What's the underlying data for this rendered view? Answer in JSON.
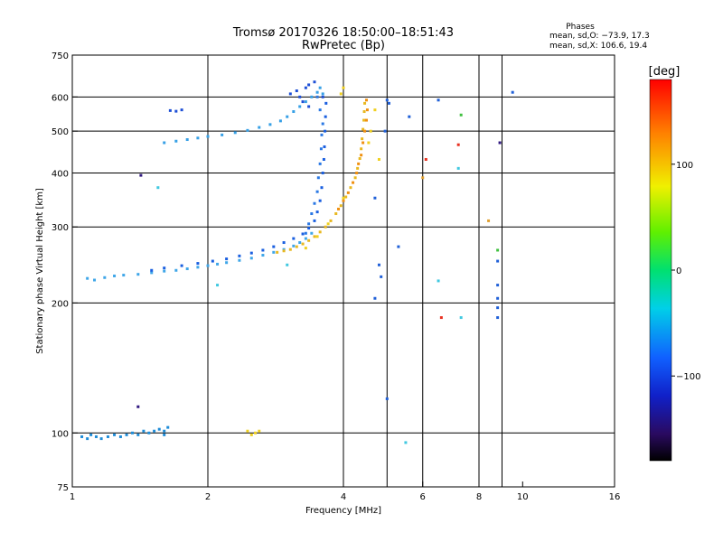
{
  "chart_data": {
    "type": "scatter",
    "title": "Tromsø 20170326 18:50:00–18:51:43",
    "subtitle": "RwPretec (Bp)",
    "xlabel": "Frequency [MHz]",
    "ylabel": "Stationary phase Virtual Height [km]",
    "x_scale": "log",
    "y_scale": "log",
    "xlim": [
      1,
      16
    ],
    "ylim": [
      75,
      750
    ],
    "x_ticks": [
      1,
      2,
      4,
      6,
      8,
      10,
      16
    ],
    "x_tick_labels": [
      "1",
      "2",
      "4",
      "6",
      "8",
      "10",
      "16"
    ],
    "x_grid": [
      2,
      4,
      5,
      6,
      8,
      9
    ],
    "y_ticks": [
      75,
      100,
      200,
      300,
      400,
      500,
      600,
      750
    ],
    "y_tick_labels": [
      "75",
      "100",
      "200",
      "300",
      "400",
      "500",
      "600",
      "750"
    ],
    "y_grid": [
      100,
      200,
      300,
      400,
      500,
      600
    ],
    "grid": true,
    "phase_info": {
      "title": "Phases",
      "line_o": "mean, sd,O: −73.9, 17.3",
      "line_x": "mean, sd,X: 106.6, 19.4"
    },
    "colorbar": {
      "label": "[deg]",
      "range": [
        -180,
        180
      ],
      "ticks": [
        100,
        0,
        -100
      ],
      "tick_labels": [
        "100",
        "0",
        "−100"
      ]
    },
    "series": [
      {
        "color": "#1e8cd8",
        "points": [
          [
            1.05,
            98
          ],
          [
            1.08,
            97
          ],
          [
            1.1,
            99
          ],
          [
            1.13,
            98
          ],
          [
            1.16,
            97
          ],
          [
            1.2,
            98
          ],
          [
            1.24,
            99
          ],
          [
            1.28,
            98
          ],
          [
            1.32,
            99
          ],
          [
            1.36,
            100
          ],
          [
            1.4,
            99
          ],
          [
            1.44,
            101
          ],
          [
            1.48,
            100
          ],
          [
            1.52,
            101
          ],
          [
            1.56,
            102
          ],
          [
            1.6,
            101
          ],
          [
            1.63,
            103
          ],
          [
            1.6,
            99
          ]
        ]
      },
      {
        "color": "#3fa6e8",
        "points": [
          [
            1.08,
            228
          ],
          [
            1.12,
            226
          ],
          [
            1.18,
            229
          ],
          [
            1.24,
            231
          ],
          [
            1.3,
            232
          ],
          [
            1.4,
            233
          ],
          [
            1.5,
            235
          ],
          [
            1.6,
            237
          ],
          [
            1.7,
            238
          ],
          [
            1.8,
            240
          ],
          [
            1.9,
            242
          ],
          [
            2.0,
            244
          ],
          [
            2.1,
            246
          ],
          [
            2.2,
            248
          ],
          [
            2.35,
            251
          ],
          [
            2.5,
            254
          ],
          [
            2.65,
            258
          ],
          [
            2.8,
            262
          ],
          [
            2.95,
            266
          ],
          [
            3.1,
            271
          ],
          [
            3.2,
            276
          ],
          [
            3.3,
            282
          ],
          [
            3.4,
            290
          ]
        ]
      },
      {
        "color": "#1a5fe0",
        "points": [
          [
            1.5,
            238
          ],
          [
            1.6,
            241
          ],
          [
            1.75,
            244
          ],
          [
            1.9,
            247
          ],
          [
            2.05,
            250
          ],
          [
            2.2,
            253
          ],
          [
            2.35,
            257
          ],
          [
            2.5,
            261
          ],
          [
            2.65,
            265
          ],
          [
            2.8,
            270
          ],
          [
            2.95,
            276
          ],
          [
            3.1,
            282
          ],
          [
            3.25,
            289
          ],
          [
            3.35,
            298
          ],
          [
            3.45,
            310
          ],
          [
            3.5,
            325
          ],
          [
            3.55,
            345
          ],
          [
            3.58,
            370
          ],
          [
            3.6,
            400
          ],
          [
            3.62,
            430
          ],
          [
            3.63,
            460
          ],
          [
            3.64,
            500
          ],
          [
            3.65,
            540
          ],
          [
            3.66,
            580
          ]
        ]
      },
      {
        "color": "#2a78e4",
        "points": [
          [
            3.3,
            290
          ],
          [
            3.35,
            305
          ],
          [
            3.4,
            322
          ],
          [
            3.45,
            340
          ],
          [
            3.5,
            362
          ],
          [
            3.52,
            390
          ],
          [
            3.55,
            420
          ],
          [
            3.57,
            455
          ],
          [
            3.58,
            490
          ],
          [
            3.6,
            520
          ],
          [
            3.55,
            560
          ],
          [
            3.5,
            600
          ]
        ]
      },
      {
        "color": "#37a0e6",
        "points": [
          [
            1.6,
            470
          ],
          [
            1.7,
            474
          ],
          [
            1.8,
            478
          ],
          [
            1.9,
            482
          ],
          [
            2.0,
            486
          ],
          [
            2.15,
            490
          ],
          [
            2.3,
            496
          ],
          [
            2.45,
            502
          ],
          [
            2.6,
            510
          ],
          [
            2.75,
            518
          ],
          [
            2.9,
            528
          ],
          [
            3.0,
            540
          ],
          [
            3.1,
            555
          ],
          [
            3.2,
            570
          ],
          [
            3.3,
            585
          ],
          [
            3.4,
            600
          ],
          [
            3.5,
            615
          ],
          [
            3.55,
            630
          ],
          [
            3.6,
            610
          ]
        ]
      },
      {
        "color": "#1d4fd6",
        "points": [
          [
            1.65,
            558
          ],
          [
            1.7,
            556
          ],
          [
            1.75,
            560
          ],
          [
            3.05,
            610
          ],
          [
            3.15,
            620
          ],
          [
            3.3,
            630
          ],
          [
            3.35,
            640
          ],
          [
            3.2,
            600
          ],
          [
            3.25,
            585
          ],
          [
            3.35,
            570
          ],
          [
            3.45,
            650
          ],
          [
            3.6,
            600
          ]
        ]
      },
      {
        "color": "#e8b820",
        "points": [
          [
            2.85,
            262
          ],
          [
            2.95,
            264
          ],
          [
            3.05,
            266
          ],
          [
            3.15,
            270
          ],
          [
            3.25,
            274
          ],
          [
            3.35,
            279
          ],
          [
            3.45,
            285
          ],
          [
            3.55,
            292
          ],
          [
            3.65,
            300
          ],
          [
            3.75,
            310
          ],
          [
            3.85,
            322
          ],
          [
            3.95,
            336
          ],
          [
            4.05,
            352
          ],
          [
            4.15,
            370
          ],
          [
            4.25,
            390
          ],
          [
            4.3,
            410
          ],
          [
            4.35,
            432
          ],
          [
            4.38,
            455
          ],
          [
            4.4,
            480
          ],
          [
            4.42,
            505
          ],
          [
            4.44,
            530
          ],
          [
            4.45,
            555
          ],
          [
            4.46,
            580
          ]
        ]
      },
      {
        "color": "#f09010",
        "points": [
          [
            3.9,
            330
          ],
          [
            4.0,
            345
          ],
          [
            4.1,
            360
          ],
          [
            4.2,
            380
          ],
          [
            4.28,
            400
          ],
          [
            4.32,
            420
          ],
          [
            4.38,
            440
          ],
          [
            4.42,
            470
          ],
          [
            4.46,
            500
          ],
          [
            4.5,
            530
          ],
          [
            4.52,
            560
          ],
          [
            4.5,
            590
          ]
        ]
      },
      {
        "color": "#f0d020",
        "points": [
          [
            3.3,
            268
          ],
          [
            3.5,
            285
          ],
          [
            3.7,
            305
          ],
          [
            4.0,
            350
          ],
          [
            4.55,
            470
          ],
          [
            4.6,
            500
          ],
          [
            4.8,
            430
          ],
          [
            4.7,
            560
          ],
          [
            3.95,
            610
          ],
          [
            4.0,
            630
          ],
          [
            2.45,
            101
          ],
          [
            2.5,
            99
          ],
          [
            2.55,
            100
          ],
          [
            2.6,
            101
          ]
        ]
      },
      {
        "color": "#2060d8",
        "points": [
          [
            5.0,
            590
          ],
          [
            5.05,
            580
          ],
          [
            5.6,
            540
          ],
          [
            4.95,
            500
          ],
          [
            4.7,
            350
          ],
          [
            5.3,
            270
          ],
          [
            6.5,
            590
          ],
          [
            4.8,
            245
          ],
          [
            4.85,
            230
          ],
          [
            4.7,
            205
          ],
          [
            5.0,
            120
          ],
          [
            8.8,
            220
          ],
          [
            8.8,
            205
          ],
          [
            8.8,
            195
          ],
          [
            8.8,
            185
          ],
          [
            8.8,
            250
          ],
          [
            9.5,
            615
          ]
        ]
      },
      {
        "color": "#40c8e0",
        "points": [
          [
            6.5,
            225
          ],
          [
            7.3,
            185
          ],
          [
            7.2,
            410
          ],
          [
            5.5,
            95
          ],
          [
            1.55,
            370
          ],
          [
            2.1,
            220
          ],
          [
            3.0,
            245
          ]
        ]
      },
      {
        "color": "#e83020",
        "points": [
          [
            6.6,
            185
          ],
          [
            7.2,
            465
          ],
          [
            6.1,
            430
          ]
        ]
      },
      {
        "color": "#40c040",
        "points": [
          [
            7.3,
            545
          ],
          [
            8.8,
            265
          ]
        ]
      },
      {
        "color": "#e0a030",
        "points": [
          [
            8.4,
            310
          ],
          [
            6.0,
            390
          ]
        ]
      },
      {
        "color": "#301880",
        "points": [
          [
            8.9,
            470
          ],
          [
            1.4,
            115
          ],
          [
            1.42,
            395
          ]
        ]
      }
    ]
  }
}
